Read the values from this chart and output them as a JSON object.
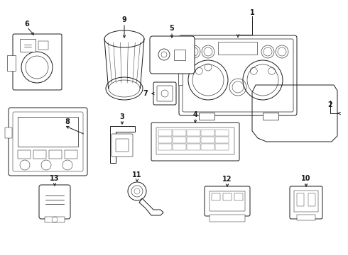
{
  "background_color": "#ffffff",
  "line_color": "#1a1a1a",
  "fig_w": 4.9,
  "fig_h": 3.6,
  "dpi": 100
}
